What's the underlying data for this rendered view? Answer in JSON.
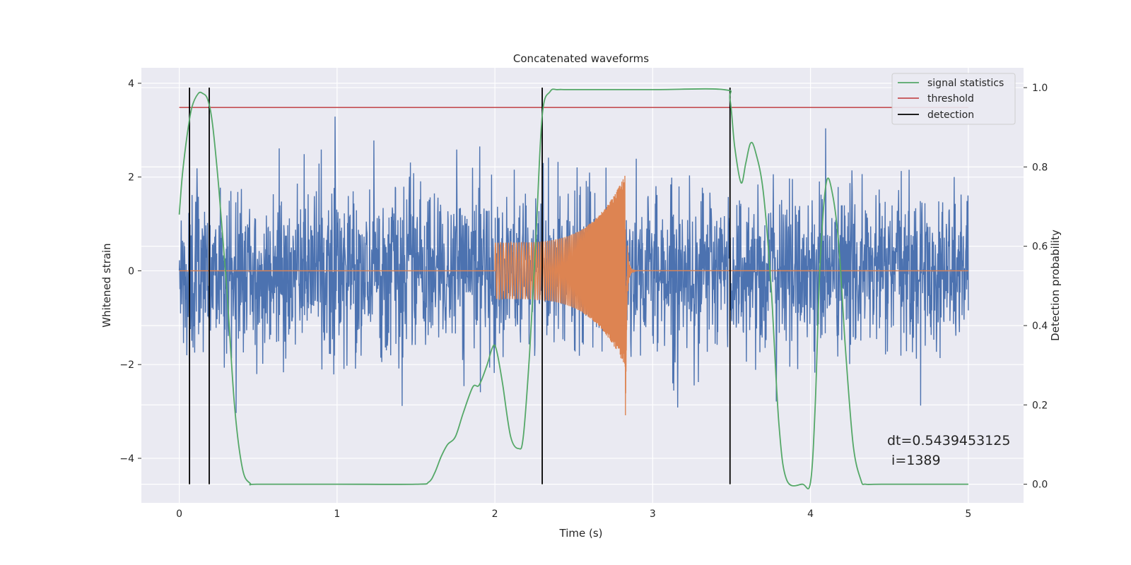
{
  "chart_data": {
    "type": "line",
    "title": "Concatenated waveforms",
    "xlabel": "Time (s)",
    "ylabel": "Whitened strain",
    "ylabel_right": "Detection probability",
    "xlim": [
      -0.24,
      5.35
    ],
    "ylim": [
      -4.95,
      4.33
    ],
    "ylim_right": [
      -0.047,
      1.05
    ],
    "x_ticks": [
      0,
      1,
      2,
      3,
      4,
      5
    ],
    "y_ticks": [
      -4,
      -2,
      0,
      2,
      4
    ],
    "y_ticks_right": [
      0.0,
      0.2,
      0.4,
      0.6,
      0.8,
      1.0
    ],
    "x_tick_labels": [
      "0",
      "1",
      "2",
      "3",
      "4",
      "5"
    ],
    "y_tick_labels": [
      "−4",
      "−2",
      "0",
      "2",
      "4"
    ],
    "y_tick_labels_right": [
      "0.0",
      "0.2",
      "0.4",
      "0.6",
      "0.8",
      "1.0"
    ],
    "grid": true,
    "legend_position": "top-right",
    "legend": [
      {
        "label": "signal statistics",
        "color": "#55a868"
      },
      {
        "label": "threshold",
        "color": "#c44e52"
      },
      {
        "label": "detection",
        "color": "#000000"
      }
    ],
    "noise": {
      "color": "#4c72b0",
      "x_range": [
        0,
        5
      ],
      "amplitude_typical": 1.2,
      "amplitude_max": 4.0
    },
    "injection": {
      "color": "#dd8452",
      "x_range": [
        0,
        5
      ],
      "chirp_start": 2.0,
      "chirp_merger": 2.84,
      "amplitude_start": 0.6,
      "amplitude_peak_top": 2.15,
      "amplitude_peak_bottom": -3.1
    },
    "threshold": {
      "value": 0.95,
      "x_range": [
        0,
        5
      ],
      "color": "#c44e52"
    },
    "detections": [
      0.065,
      0.19,
      2.3,
      3.49
    ],
    "signal_statistics": {
      "color": "#55a868",
      "x": [
        0,
        0.02,
        0.05,
        0.08,
        0.12,
        0.15,
        0.18,
        0.21,
        0.25,
        0.3,
        0.35,
        0.4,
        0.45,
        0.5,
        1.0,
        1.5,
        1.58,
        1.62,
        1.66,
        1.7,
        1.75,
        1.8,
        1.86,
        1.9,
        1.95,
        1.98,
        2.0,
        2.02,
        2.05,
        2.1,
        2.15,
        2.18,
        2.22,
        2.26,
        2.3,
        2.35,
        2.4,
        2.5,
        3.0,
        3.45,
        3.49,
        3.52,
        3.56,
        3.59,
        3.62,
        3.65,
        3.7,
        3.75,
        3.8,
        3.85,
        3.95,
        4.0,
        4.03,
        4.06,
        4.1,
        4.14,
        4.18,
        4.22,
        4.27,
        4.32,
        4.35,
        4.45,
        5.0
      ],
      "y": [
        0.68,
        0.78,
        0.88,
        0.95,
        0.985,
        0.985,
        0.97,
        0.91,
        0.75,
        0.5,
        0.2,
        0.04,
        0.002,
        0.0,
        0.0,
        0.0,
        0.005,
        0.03,
        0.07,
        0.1,
        0.12,
        0.18,
        0.245,
        0.25,
        0.3,
        0.34,
        0.35,
        0.32,
        0.25,
        0.12,
        0.09,
        0.12,
        0.33,
        0.62,
        0.93,
        0.99,
        0.995,
        0.995,
        0.995,
        0.995,
        0.97,
        0.85,
        0.76,
        0.81,
        0.86,
        0.84,
        0.74,
        0.5,
        0.15,
        0.01,
        0.0,
        0.005,
        0.2,
        0.55,
        0.76,
        0.73,
        0.6,
        0.35,
        0.1,
        0.01,
        0.0,
        0.0,
        0.0
      ]
    },
    "annotation": {
      "text_line1": "dt=0.5439453125",
      "text_line2": " i=1389"
    }
  }
}
